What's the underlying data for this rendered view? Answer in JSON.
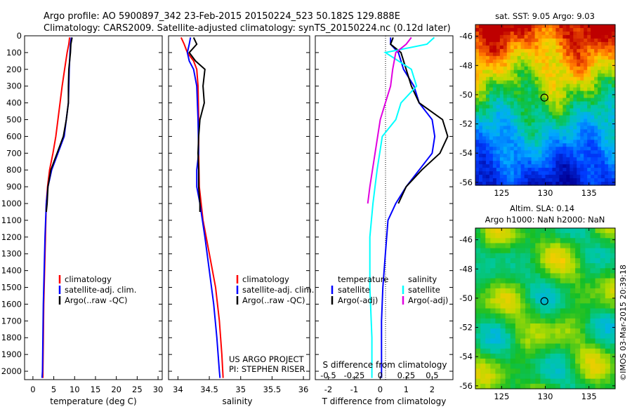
{
  "header": {
    "line1": "Argo profile: AO 5900897_342 23-Feb-2015 20150224_523 50.182S 129.888E",
    "line2": "Climatology: CARS2009. Satellite-adjusted climatology: synTS_20150224.nc (0.12d later)"
  },
  "credit": "©IMOS 03-Mar-2015 20:39:18",
  "project": {
    "line1": "US ARGO PROJECT",
    "line2": "PI: STEPHEN RISER"
  },
  "colors": {
    "red": "#ff0000",
    "blue": "#0000ff",
    "black": "#000000",
    "cyan": "#00ffff",
    "magenta": "#e000e0"
  },
  "chart_data": [
    {
      "type": "line",
      "xlabel": "temperature (deg C)",
      "xticks": [
        "0",
        "5",
        "10",
        "15",
        "20",
        "25",
        "30"
      ],
      "xlim": [
        -2,
        31
      ],
      "ylim": [
        0,
        2050
      ],
      "yticks": [
        "0",
        "100",
        "200",
        "300",
        "400",
        "500",
        "600",
        "700",
        "800",
        "900",
        "1000",
        "1100",
        "1200",
        "1300",
        "1400",
        "1500",
        "1600",
        "1700",
        "1800",
        "1900",
        "2000"
      ],
      "legend": [
        "climatology",
        "satellite-adj. clim.",
        "Argo(..raw -QC)"
      ],
      "series": [
        {
          "name": "climatology",
          "color": "red",
          "points": [
            [
              8.8,
              10
            ],
            [
              8.6,
              50
            ],
            [
              8.2,
              100
            ],
            [
              7.6,
              200
            ],
            [
              7.0,
              300
            ],
            [
              6.5,
              400
            ],
            [
              6.0,
              500
            ],
            [
              5.5,
              600
            ],
            [
              4.8,
              700
            ],
            [
              4.0,
              800
            ],
            [
              3.5,
              900
            ],
            [
              3.2,
              1000
            ],
            [
              3.0,
              1200
            ],
            [
              2.8,
              1400
            ],
            [
              2.6,
              1600
            ],
            [
              2.5,
              1800
            ],
            [
              2.4,
              2000
            ],
            [
              2.4,
              2040
            ]
          ]
        },
        {
          "name": "satellite-adj. clim.",
          "color": "blue",
          "points": [
            [
              9.2,
              10
            ],
            [
              9.0,
              50
            ],
            [
              8.9,
              100
            ],
            [
              8.7,
              200
            ],
            [
              8.6,
              300
            ],
            [
              8.5,
              400
            ],
            [
              8.0,
              500
            ],
            [
              7.5,
              600
            ],
            [
              6.0,
              700
            ],
            [
              4.5,
              800
            ],
            [
              3.6,
              900
            ],
            [
              3.2,
              1000
            ],
            [
              2.9,
              1200
            ],
            [
              2.7,
              1400
            ],
            [
              2.5,
              1600
            ],
            [
              2.4,
              1800
            ],
            [
              2.3,
              2000
            ],
            [
              2.2,
              2040
            ]
          ]
        },
        {
          "name": "Argo(..raw -QC)",
          "color": "black",
          "points": [
            [
              9.4,
              10
            ],
            [
              9.1,
              50
            ],
            [
              9.0,
              100
            ],
            [
              8.6,
              200
            ],
            [
              8.5,
              300
            ],
            [
              8.5,
              400
            ],
            [
              8.0,
              500
            ],
            [
              7.3,
              600
            ],
            [
              5.8,
              700
            ],
            [
              4.3,
              800
            ],
            [
              3.6,
              900
            ],
            [
              3.4,
              1000
            ],
            [
              3.2,
              1050
            ]
          ]
        }
      ]
    },
    {
      "type": "line",
      "xlabel": "salinity",
      "xticks": [
        "34",
        "34.5",
        "35",
        "35.5",
        "36"
      ],
      "xlim": [
        33.85,
        36.1
      ],
      "ylim": [
        0,
        2050
      ],
      "legend": [
        "climatology",
        "satellite-adj. clim.",
        "Argo(..raw -QC)"
      ],
      "series": [
        {
          "name": "climatology",
          "color": "red",
          "points": [
            [
              34.05,
              10
            ],
            [
              34.1,
              50
            ],
            [
              34.15,
              100
            ],
            [
              34.25,
              150
            ],
            [
              34.3,
              200
            ],
            [
              34.32,
              300
            ],
            [
              34.33,
              500
            ],
            [
              34.33,
              700
            ],
            [
              34.34,
              900
            ],
            [
              34.4,
              1100
            ],
            [
              34.5,
              1300
            ],
            [
              34.6,
              1500
            ],
            [
              34.66,
              1700
            ],
            [
              34.7,
              1900
            ],
            [
              34.72,
              2040
            ]
          ]
        },
        {
          "name": "satellite-adj. clim.",
          "color": "blue",
          "points": [
            [
              34.2,
              10
            ],
            [
              34.18,
              50
            ],
            [
              34.15,
              100
            ],
            [
              34.18,
              150
            ],
            [
              34.25,
              200
            ],
            [
              34.3,
              300
            ],
            [
              34.32,
              500
            ],
            [
              34.33,
              700
            ],
            [
              34.3,
              800
            ],
            [
              34.3,
              900
            ],
            [
              34.35,
              1000
            ],
            [
              34.43,
              1200
            ],
            [
              34.5,
              1400
            ],
            [
              34.57,
              1600
            ],
            [
              34.62,
              1800
            ],
            [
              34.66,
              2000
            ],
            [
              34.67,
              2040
            ]
          ]
        },
        {
          "name": "Argo(..raw -QC)",
          "color": "black",
          "points": [
            [
              34.25,
              10
            ],
            [
              34.3,
              50
            ],
            [
              34.18,
              100
            ],
            [
              34.28,
              150
            ],
            [
              34.43,
              200
            ],
            [
              34.4,
              300
            ],
            [
              34.42,
              400
            ],
            [
              34.35,
              500
            ],
            [
              34.33,
              600
            ],
            [
              34.32,
              700
            ],
            [
              34.33,
              800
            ],
            [
              34.33,
              900
            ],
            [
              34.35,
              1000
            ],
            [
              34.35,
              1050
            ]
          ]
        }
      ]
    },
    {
      "type": "line",
      "xlabel": "T difference from climatology",
      "xticks": [
        "-2",
        "-1",
        "0",
        "1",
        "2"
      ],
      "xlim": [
        -2.5,
        2.8
      ],
      "top_label": "S difference from climatology",
      "top_ticks": [
        "-0.5",
        "-0.25",
        "0",
        "0.25",
        "0.5"
      ],
      "ylim": [
        0,
        2050
      ],
      "legend": {
        "left_title": "temperature",
        "right_title": "salinity",
        "left": [
          "satellite",
          "Argo(-adj)"
        ],
        "right": [
          "satellite",
          "Argo(-adj)"
        ]
      },
      "series": [
        {
          "name": "temperature satellite",
          "color": "blue",
          "points": [
            [
              0.4,
              10
            ],
            [
              0.4,
              50
            ],
            [
              0.7,
              100
            ],
            [
              0.9,
              200
            ],
            [
              1.3,
              300
            ],
            [
              1.5,
              400
            ],
            [
              2.0,
              500
            ],
            [
              2.1,
              600
            ],
            [
              2.0,
              700
            ],
            [
              1.5,
              800
            ],
            [
              1.0,
              900
            ],
            [
              0.6,
              1000
            ],
            [
              0.3,
              1100
            ],
            [
              0.2,
              1300
            ],
            [
              0.1,
              1500
            ],
            [
              0.05,
              1700
            ],
            [
              0.05,
              1900
            ],
            [
              0.05,
              2040
            ]
          ]
        },
        {
          "name": "temperature Argo(-adj)",
          "color": "black",
          "points": [
            [
              0.5,
              10
            ],
            [
              0.4,
              50
            ],
            [
              0.8,
              100
            ],
            [
              1.0,
              200
            ],
            [
              1.2,
              300
            ],
            [
              1.5,
              400
            ],
            [
              2.4,
              500
            ],
            [
              2.6,
              600
            ],
            [
              2.3,
              700
            ],
            [
              1.6,
              800
            ],
            [
              1.0,
              900
            ],
            [
              0.7,
              1000
            ]
          ]
        },
        {
          "name": "salinity satellite",
          "color": "cyan",
          "points": [
            [
              0.52,
              10
            ],
            [
              0.45,
              50
            ],
            [
              0.05,
              100
            ],
            [
              0.3,
              200
            ],
            [
              0.35,
              300
            ],
            [
              0.2,
              400
            ],
            [
              0.15,
              500
            ],
            [
              0.02,
              600
            ],
            [
              -0.03,
              800
            ],
            [
              -0.07,
              1000
            ],
            [
              -0.1,
              1200
            ],
            [
              -0.1,
              1500
            ],
            [
              -0.08,
              1800
            ],
            [
              -0.08,
              2040
            ]
          ]
        },
        {
          "name": "salinity Argo(-adj)",
          "color": "magenta",
          "points": [
            [
              0.3,
              10
            ],
            [
              0.25,
              50
            ],
            [
              0.15,
              100
            ],
            [
              0.12,
              200
            ],
            [
              0.1,
              300
            ],
            [
              0.05,
              400
            ],
            [
              0.0,
              500
            ],
            [
              -0.05,
              700
            ],
            [
              -0.1,
              900
            ],
            [
              -0.12,
              1000
            ]
          ]
        }
      ]
    },
    {
      "type": "heatmap",
      "title": "sat. SST: 9.05  Argo: 9.03",
      "xticks": [
        "125",
        "130",
        "135"
      ],
      "yticks": [
        "-46",
        "-48",
        "-50",
        "-52",
        "-54",
        "-56"
      ],
      "xlim": [
        122,
        138
      ],
      "ylim": [
        -56.2,
        -45.2
      ],
      "marker": {
        "lon": 129.9,
        "lat": -50.2
      }
    },
    {
      "type": "heatmap",
      "title": "Altim. SLA: 0.14",
      "subtitle": "Argo h1000: NaN  h2000: NaN",
      "xticks": [
        "125",
        "130",
        "135"
      ],
      "yticks": [
        "-46",
        "-48",
        "-50",
        "-52",
        "-54",
        "-56"
      ],
      "xlim": [
        122,
        138
      ],
      "ylim": [
        -56.2,
        -45.2
      ],
      "marker": {
        "lon": 129.9,
        "lat": -50.2
      }
    }
  ]
}
